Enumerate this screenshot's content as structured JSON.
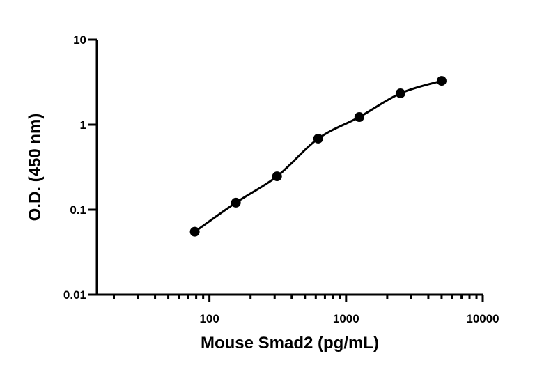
{
  "chart_data": {
    "type": "scatter",
    "title": "",
    "xlabel": "Mouse Smad2 (pg/mL)",
    "ylabel": "O.D. (450 nm)",
    "xscale": "log",
    "yscale": "log",
    "xlim": [
      15,
      10000
    ],
    "ylim": [
      0.01,
      10
    ],
    "xticks": [
      "100",
      "1000",
      "10000"
    ],
    "yticks": [
      "0.01",
      "0.1",
      "1",
      "10"
    ],
    "grid": false,
    "fit_curve": true,
    "color": "#000000",
    "x": [
      78.125,
      156.25,
      312.5,
      625,
      1250,
      2500,
      5000
    ],
    "y": [
      0.055,
      0.121,
      0.247,
      0.686,
      1.23,
      2.34,
      3.28
    ]
  }
}
